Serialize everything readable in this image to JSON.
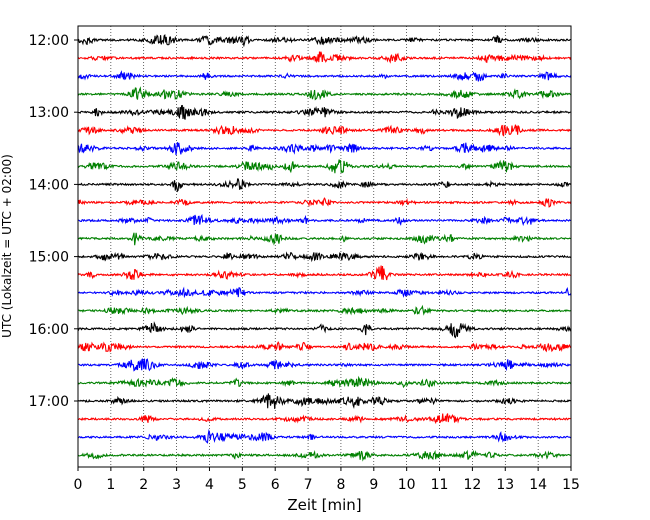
{
  "chart_data": {
    "type": "line",
    "title": "",
    "xlabel": "Zeit  [min]",
    "ylabel": "UTC (Lokalzeit = UTC + 02:00)",
    "xlim": [
      0,
      15
    ],
    "x_ticks": [
      "0",
      "1",
      "2",
      "3",
      "4",
      "5",
      "6",
      "7",
      "8",
      "9",
      "10",
      "11",
      "12",
      "13",
      "14",
      "15"
    ],
    "y_ticks": [
      "12:00",
      "13:00",
      "14:00",
      "15:00",
      "16:00",
      "17:00"
    ],
    "grid": "vertical dotted lines at each minute",
    "legend": "none",
    "trace_interval_min": 15,
    "start_time": "12:00",
    "trace_count": 24,
    "color_cycle": [
      "#000000",
      "#ff0000",
      "#0000ff",
      "#008000"
    ]
  }
}
